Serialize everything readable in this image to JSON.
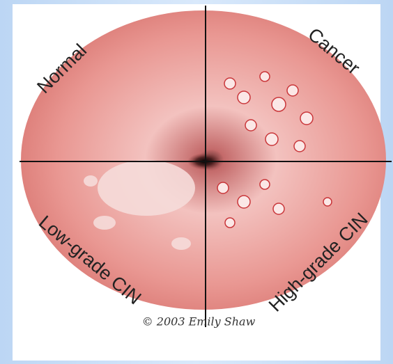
{
  "labels": {
    "top_left": "Normal",
    "top_right": "Cancer",
    "bottom_left": "Low-grade CIN",
    "bottom_right": "High-grade CIN"
  },
  "signature": "© 2003 Emily Shaw"
}
